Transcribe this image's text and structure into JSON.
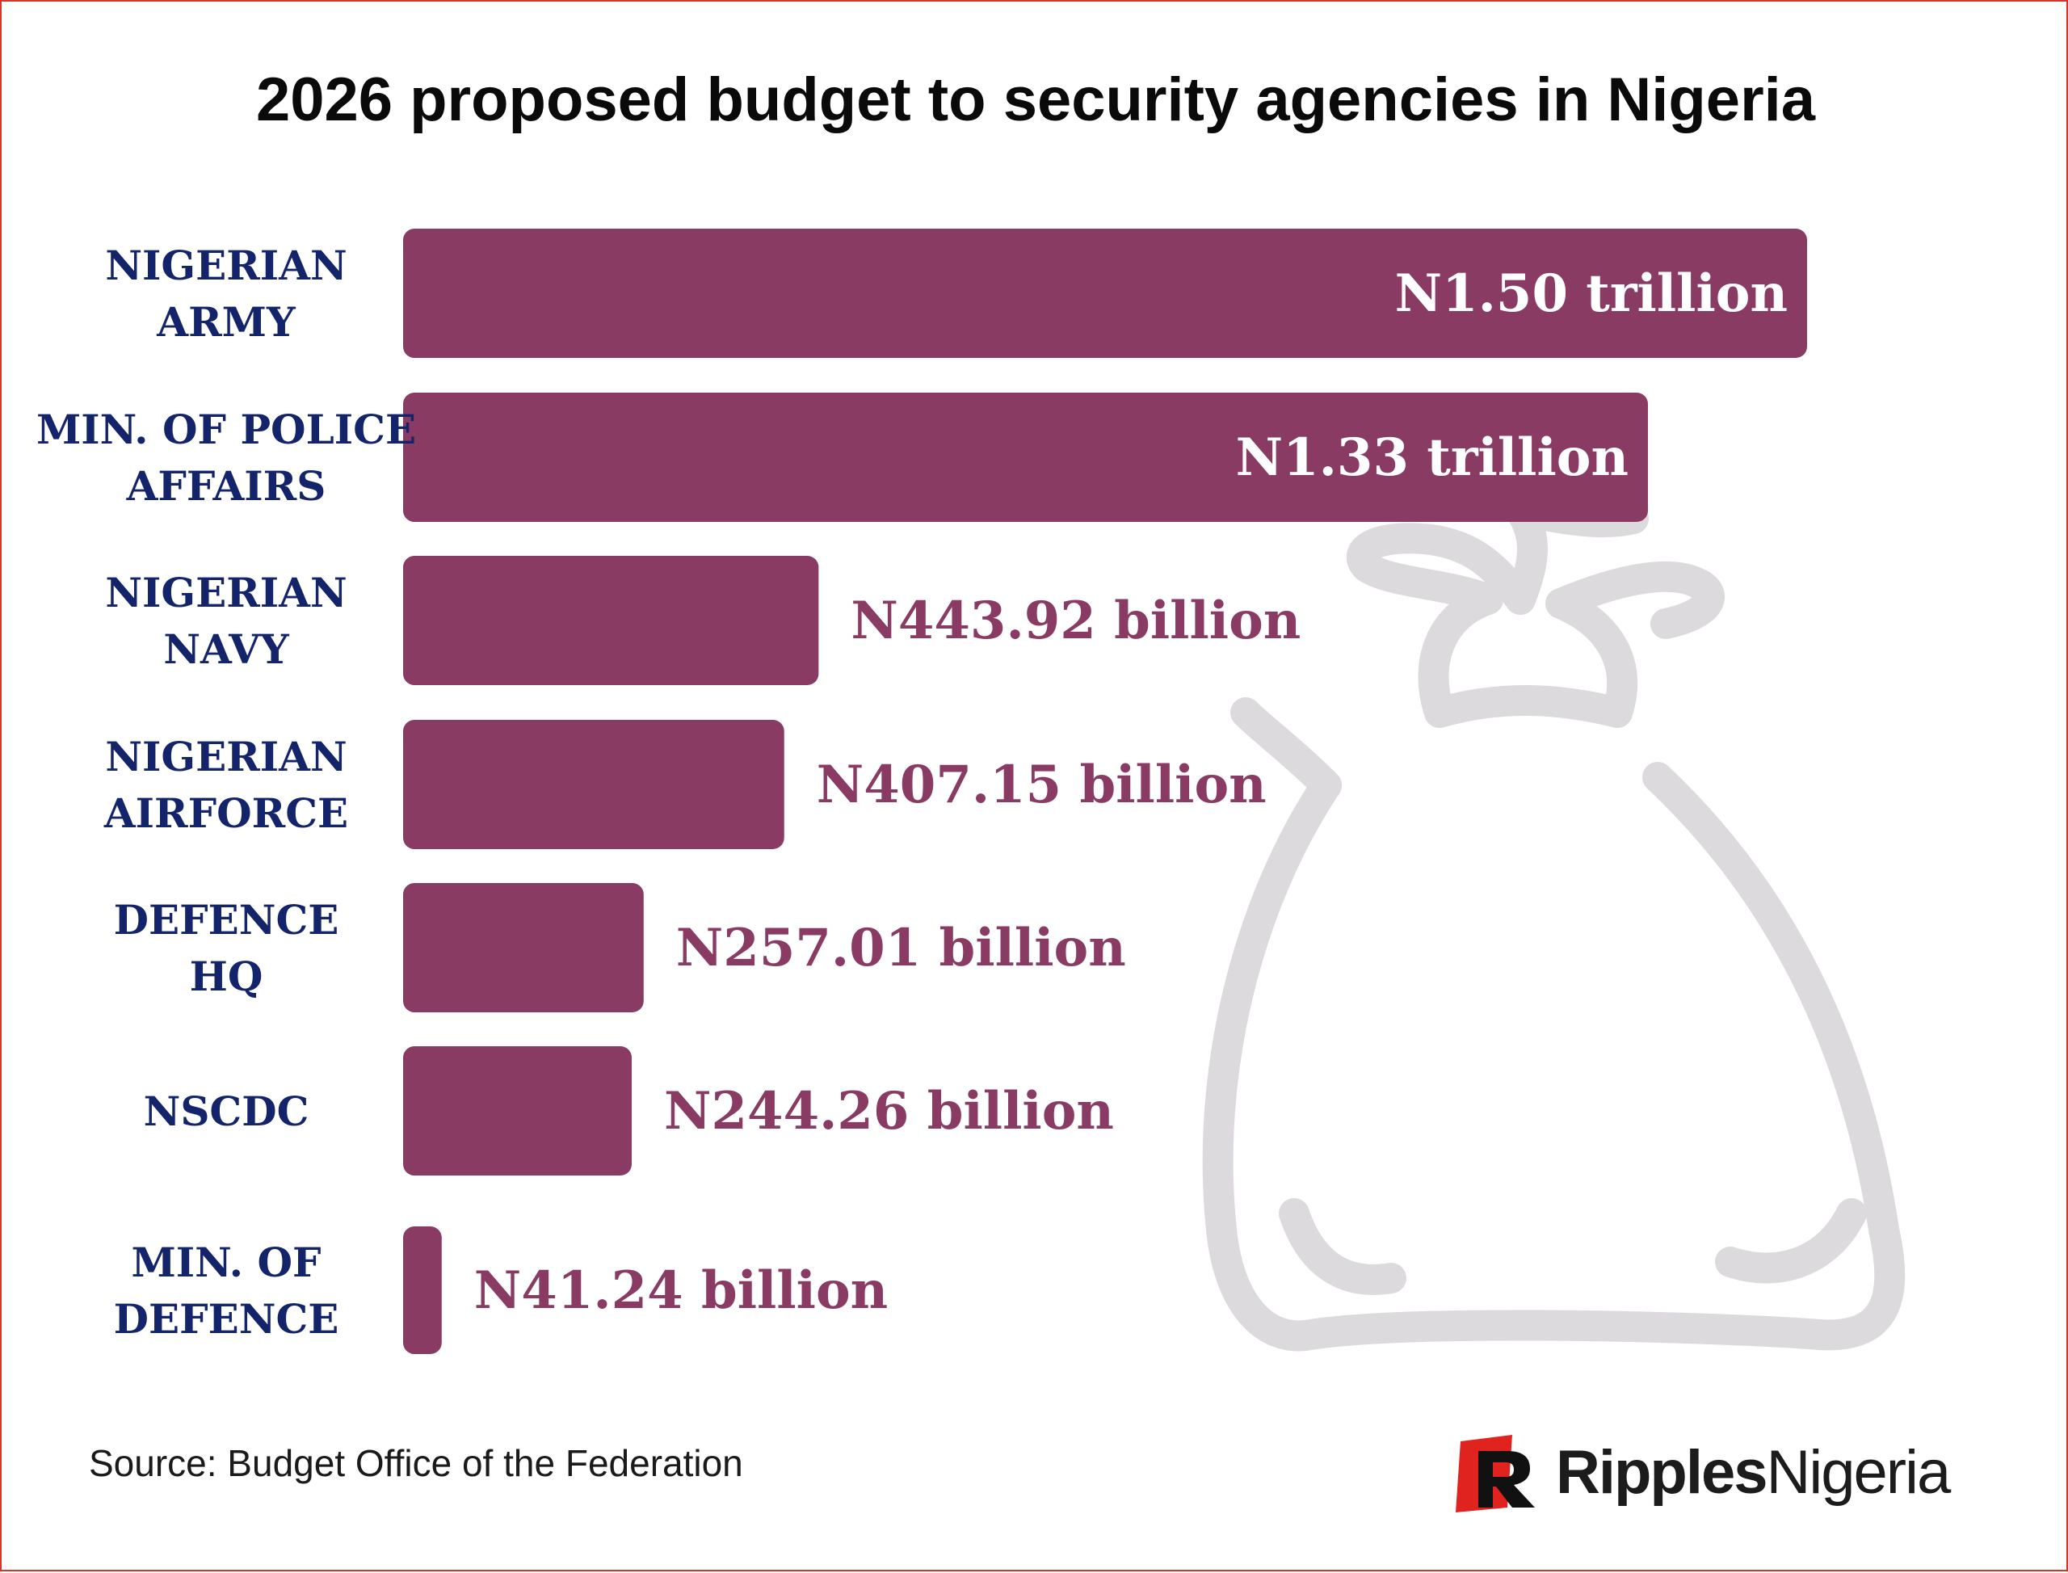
{
  "title": "2026 proposed budget to security agencies in Nigeria",
  "source": "Source: Budget Office of the Federation",
  "brand": {
    "name_bold": "Ripples",
    "name_light": "Nigeria",
    "logo_letter": "R"
  },
  "colors": {
    "bar": "#8a3b63",
    "label": "#14246b",
    "inside_text": "#ffffff",
    "bag": "#dcdadd",
    "brand_red": "#e0231e"
  },
  "chart_data": {
    "type": "bar",
    "orientation": "horizontal",
    "title": "2026 proposed budget to security agencies in Nigeria",
    "unit": "billion Naira",
    "xlim": [
      0,
      1500
    ],
    "categories": [
      [
        "NIGERIAN",
        "ARMY"
      ],
      [
        "MIN. OF POLICE",
        "AFFAIRS"
      ],
      [
        "NIGERIAN",
        "NAVY"
      ],
      [
        "NIGERIAN",
        "AIRFORCE"
      ],
      [
        "DEFENCE",
        "HQ"
      ],
      [
        "NSCDC"
      ],
      [
        "MIN. OF",
        "DEFENCE"
      ]
    ],
    "values": [
      1500,
      1330,
      443.92,
      407.15,
      257.01,
      244.26,
      41.24
    ],
    "value_labels": [
      "N1.50 trillion",
      "N1.33 trillion",
      "N443.92 billion",
      "N407.15 billion",
      "N257.01 billion",
      "N244.26 billion",
      "N41.24 billion"
    ],
    "label_inside": [
      true,
      true,
      false,
      false,
      false,
      false,
      false
    ]
  }
}
